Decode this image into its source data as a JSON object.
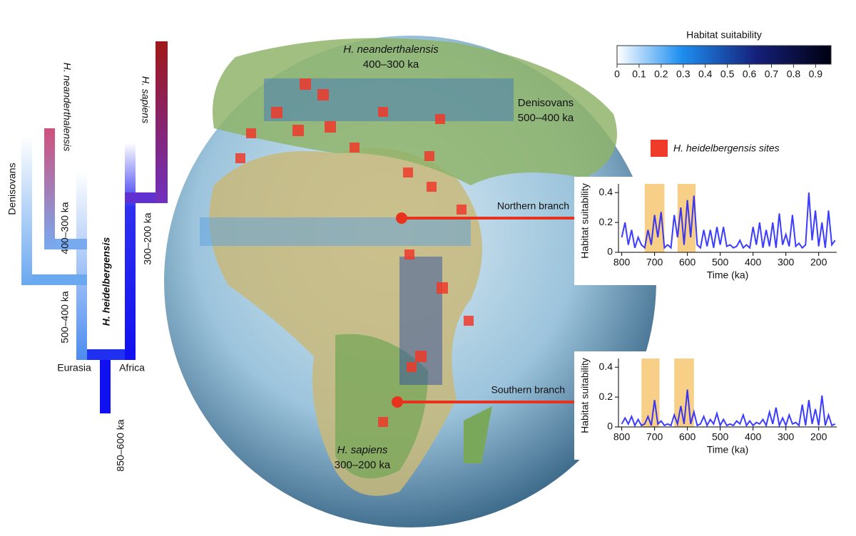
{
  "tree": {
    "denisovans": "Denisovans",
    "neanderthalensis": "H. neanderthalensis",
    "sapiens": "H. sapiens",
    "heidelbergensis": "H. heidelbergensis",
    "date_neanderthal": "400–300 ka",
    "date_denisovan": "500–400 ka",
    "date_sapiens": "300–200 ka",
    "date_root": "850–600 ka",
    "eurasia": "Eurasia",
    "africa": "Africa"
  },
  "map": {
    "neanderthal_label": "H. neanderthalensis",
    "neanderthal_date": "400–300 ka",
    "denisovan_label": "Denisovans",
    "denisovan_date": "500–400 ka",
    "sapiens_label": "H. sapiens",
    "sapiens_date": "300–200 ka"
  },
  "colorbar": {
    "title": "Habitat suitability",
    "lim": [
      0,
      0.97
    ],
    "ticks": [
      0,
      0.1,
      0.2,
      0.3,
      0.4,
      0.5,
      0.6,
      0.7,
      0.8,
      0.9
    ]
  },
  "legend": {
    "sites": "H. heidelbergensis sites",
    "color": "#f03a2a"
  },
  "chart_data": [
    {
      "type": "line",
      "label": "Northern branch",
      "xlabel": "Time (ka)",
      "ylabel": "Habitat suitability",
      "x": [
        800,
        790,
        780,
        770,
        760,
        750,
        740,
        730,
        720,
        710,
        700,
        690,
        680,
        670,
        660,
        650,
        640,
        630,
        620,
        610,
        600,
        590,
        580,
        570,
        560,
        550,
        540,
        530,
        520,
        510,
        500,
        490,
        480,
        470,
        460,
        450,
        440,
        430,
        420,
        410,
        400,
        390,
        380,
        370,
        360,
        350,
        340,
        330,
        320,
        310,
        300,
        290,
        280,
        270,
        260,
        250,
        240,
        230,
        220,
        210,
        200,
        190,
        180,
        170,
        160,
        150
      ],
      "series": [
        {
          "color": "#1a1aff",
          "values": [
            0.1,
            0.2,
            0.05,
            0.15,
            0.03,
            0.1,
            0.05,
            0.03,
            0.15,
            0.05,
            0.25,
            0.1,
            0.27,
            0.03,
            0.05,
            0.03,
            0.25,
            0.1,
            0.3,
            0.05,
            0.35,
            0.1,
            0.38,
            0.05,
            0.03,
            0.15,
            0.04,
            0.15,
            0.03,
            0.17,
            0.05,
            0.17,
            0.04,
            0.05,
            0.03,
            0.04,
            0.08,
            0.03,
            0.05,
            0.03,
            0.17,
            0.05,
            0.2,
            0.03,
            0.15,
            0.04,
            0.2,
            0.03,
            0.26,
            0.05,
            0.12,
            0.04,
            0.25,
            0.04,
            0.06,
            0.03,
            0.05,
            0.4,
            0.08,
            0.28,
            0.04,
            0.2,
            0.03,
            0.28,
            0.05,
            0.08
          ]
        }
      ],
      "shaded": [
        [
          730,
          670
        ],
        [
          630,
          575
        ]
      ],
      "shade_color": "#f7cf86",
      "xlim": [
        810,
        145
      ],
      "ylim": [
        0,
        0.42
      ],
      "xticks": [
        800,
        700,
        600,
        500,
        400,
        300,
        200
      ],
      "yticks": [
        0,
        0.2,
        0.4
      ]
    },
    {
      "type": "line",
      "label": "Southern branch",
      "xlabel": "Time (ka)",
      "ylabel": "Habitat suitability",
      "x": [
        800,
        790,
        780,
        770,
        760,
        750,
        740,
        730,
        720,
        710,
        700,
        690,
        680,
        670,
        660,
        650,
        640,
        630,
        620,
        610,
        600,
        590,
        580,
        570,
        560,
        550,
        540,
        530,
        520,
        510,
        500,
        490,
        480,
        470,
        460,
        450,
        440,
        430,
        420,
        410,
        400,
        390,
        380,
        370,
        360,
        350,
        340,
        330,
        320,
        310,
        300,
        290,
        280,
        270,
        260,
        250,
        240,
        230,
        220,
        210,
        200,
        190,
        180,
        170,
        160,
        150
      ],
      "series": [
        {
          "color": "#1a1aff",
          "values": [
            0.02,
            0.06,
            0.02,
            0.07,
            0.01,
            0.05,
            0.01,
            0.02,
            0.07,
            0.01,
            0.18,
            0.02,
            0.04,
            0.01,
            0.02,
            0.01,
            0.08,
            0.02,
            0.14,
            0.02,
            0.25,
            0.02,
            0.1,
            0.01,
            0.02,
            0.07,
            0.01,
            0.05,
            0.02,
            0.09,
            0.01,
            0.05,
            0.01,
            0.02,
            0.01,
            0.04,
            0.02,
            0.08,
            0.01,
            0.04,
            0.01,
            0.03,
            0.02,
            0.05,
            0.01,
            0.1,
            0.02,
            0.13,
            0.01,
            0.06,
            0.01,
            0.08,
            0.02,
            0.03,
            0.01,
            0.15,
            0.01,
            0.18,
            0.02,
            0.12,
            0.01,
            0.21,
            0.01,
            0.08,
            0.01,
            0.02
          ]
        }
      ],
      "shaded": [
        [
          740,
          685
        ],
        [
          640,
          580
        ]
      ],
      "shade_color": "#f7cf86",
      "xlim": [
        810,
        145
      ],
      "ylim": [
        0,
        0.42
      ],
      "xticks": [
        800,
        700,
        600,
        500,
        400,
        300,
        200
      ],
      "yticks": [
        0,
        0.2,
        0.4
      ]
    }
  ]
}
